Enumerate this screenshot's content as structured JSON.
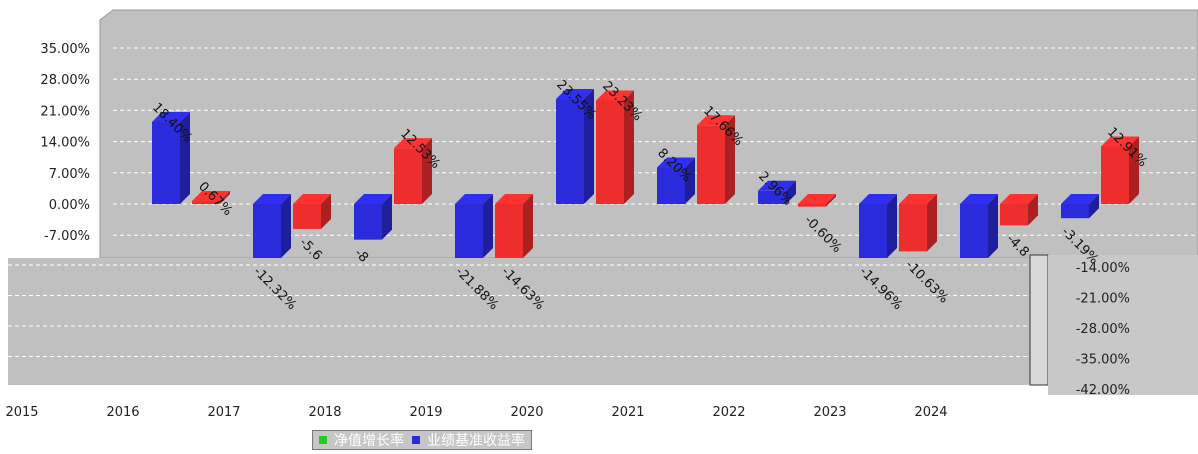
{
  "chart_data": {
    "type": "bar",
    "categories": [
      "2015",
      "2016",
      "2017",
      "2018",
      "2019",
      "2020",
      "2021",
      "2022",
      "2023",
      "2024"
    ],
    "series": [
      {
        "name": "业绩基准收益率",
        "color": "#2b2bdc",
        "values": [
          18.4,
          -12.32,
          -8.0,
          -21.88,
          23.55,
          8.2,
          2.96,
          -14.96,
          -13.6,
          -3.19
        ],
        "labels": [
          "18.40%",
          "-12.32%",
          "-8",
          "-21.88%",
          "23.55%",
          "8.20%",
          "2.96%",
          "-14.96%",
          "",
          "-3.19%"
        ]
      },
      {
        "name": "净值增长率",
        "color": "#ee2d2d",
        "values": [
          0.67,
          -5.6,
          12.53,
          -14.63,
          23.23,
          17.66,
          -0.6,
          -10.63,
          -4.8,
          12.91
        ],
        "labels": [
          "0.67%",
          "-5.6",
          "12.53%",
          "-14.63%",
          "23.23%",
          "17.66%",
          "-0.60%",
          "-10.63%",
          "-4.8",
          "12.91%"
        ]
      }
    ],
    "y_ticks_left": [
      "35.00%",
      "28.00%",
      "21.00%",
      "14.00%",
      "7.00%",
      "0.00%",
      "-7.00%"
    ],
    "y_ticks_right": [
      "-14.00%",
      "-21.00%",
      "-28.00%",
      "-35.00%",
      "-42.00%"
    ],
    "x_tick_labels": [
      "2015",
      "2016",
      "2017",
      "2018",
      "2019",
      "2020",
      "2021",
      "2022",
      "2023",
      "2024"
    ],
    "y_range": [
      -42,
      35
    ],
    "grid": true,
    "legend_position": "bottom",
    "colors": {
      "plot_background": "#c0c0c0",
      "grid": "#ffffff",
      "blue_bar": "#2b2bdc",
      "red_bar": "#ee2d2d",
      "legend_green": "#22cc22"
    }
  },
  "legend": {
    "net_value_label": "净值增长率",
    "benchmark_label": "业绩基准收益率"
  }
}
